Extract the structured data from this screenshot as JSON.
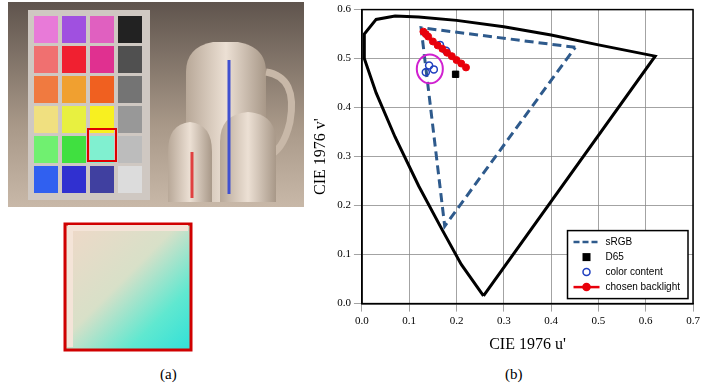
{
  "panel_labels": [
    "(a)",
    "(b)"
  ],
  "chart_data": {
    "type": "scatter",
    "x_label": "CIE 1976 u'",
    "y_label": "CIE 1976 v'",
    "xlim": [
      0,
      0.7
    ],
    "ylim": [
      0,
      0.6
    ],
    "xticks": [
      {
        "value": 0,
        "label": "0.0"
      },
      {
        "value": 0.1,
        "label": "0.1"
      },
      {
        "value": 0.2,
        "label": "0.2"
      },
      {
        "value": 0.3,
        "label": "0.3"
      },
      {
        "value": 0.4,
        "label": "0.4"
      },
      {
        "value": 0.5,
        "label": "0.5"
      },
      {
        "value": 0.6,
        "label": "0.6"
      },
      {
        "value": 0.7,
        "label": "0.7"
      }
    ],
    "yticks": [
      {
        "value": 0,
        "label": "0.0"
      },
      {
        "value": 0.1,
        "label": "0.1"
      },
      {
        "value": 0.2,
        "label": "0.2"
      },
      {
        "value": 0.3,
        "label": "0.3"
      },
      {
        "value": 0.4,
        "label": "0.4"
      },
      {
        "value": 0.5,
        "label": "0.5"
      },
      {
        "value": 0.6,
        "label": "0.6"
      }
    ],
    "grid": true,
    "legend": "lower right",
    "series": [
      {
        "color": "#000000",
        "line_style": "solid",
        "marker": "none",
        "x": [
          0.257,
          0.21,
          0.17,
          0.12,
          0.07,
          0.03,
          0.005,
          0.005,
          0.03,
          0.07,
          0.12,
          0.2,
          0.3,
          0.4,
          0.5,
          0.62,
          0.257
        ],
        "values": [
          0.016,
          0.08,
          0.15,
          0.24,
          0.34,
          0.43,
          0.5,
          0.55,
          0.58,
          0.587,
          0.585,
          0.578,
          0.565,
          0.548,
          0.528,
          0.505,
          0.016
        ]
      },
      {
        "name": "sRGB",
        "color": "#2e5a8c",
        "line_style": "dashed",
        "marker": "none",
        "x": [
          0.451,
          0.125,
          0.175,
          0.451
        ],
        "values": [
          0.523,
          0.563,
          0.158,
          0.523
        ]
      },
      {
        "name": "D65",
        "color": "#000000",
        "marker": "square",
        "x": [
          0.198
        ],
        "values": [
          0.468
        ]
      },
      {
        "name": "color content",
        "color": "#1f3fbf",
        "marker": "open circle",
        "x": [
          0.135,
          0.142,
          0.152,
          0.165,
          0.178
        ],
        "values": [
          0.472,
          0.486,
          0.478,
          0.528,
          0.516
        ]
      },
      {
        "name": "chosen backlight",
        "color": "#e8000b",
        "line_style": "solid",
        "marker": "circle",
        "x": [
          0.13,
          0.135,
          0.14,
          0.15,
          0.16,
          0.17,
          0.18,
          0.19,
          0.2,
          0.21,
          0.22
        ],
        "values": [
          0.555,
          0.55,
          0.545,
          0.535,
          0.527,
          0.52,
          0.512,
          0.505,
          0.497,
          0.49,
          0.482
        ]
      }
    ]
  }
}
